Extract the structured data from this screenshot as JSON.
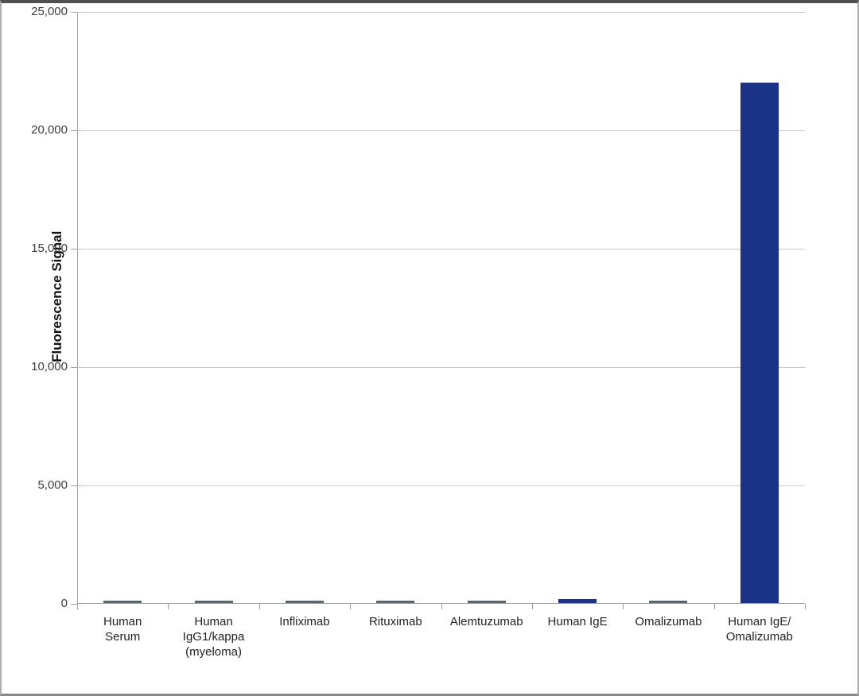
{
  "chart_data": {
    "type": "bar",
    "title": "",
    "xlabel": "",
    "ylabel": "Fluorescence Signal",
    "ylim": [
      0,
      25000
    ],
    "ytick_interval": 5000,
    "yticks": [
      25000,
      20000,
      15000,
      10000,
      5000,
      0
    ],
    "ytick_labels": [
      "25,000",
      "20,000",
      "15,000",
      "10,000",
      "5,000",
      "0"
    ],
    "grid": true,
    "legend": "none",
    "categories": [
      "Human Serum",
      "Human IgG1/kappa (myeloma)",
      "Infliximab",
      "Rituximab",
      "Alemtuzumab",
      "Human IgE",
      "Omalizumab",
      "Human IgE/Omalizumab"
    ],
    "category_label_lines": [
      "Human\nSerum",
      "Human\nIgG1/kappa\n(myeloma)",
      "Infliximab",
      "Rituximab",
      "Alemtuzumab",
      "Human IgE",
      "Omalizumab",
      "Human IgE/\nOmalizumab"
    ],
    "values": [
      150,
      150,
      150,
      150,
      150,
      200,
      150,
      22000
    ],
    "bar_colors": [
      "#5b656c",
      "#5b656c",
      "#5b656c",
      "#5b656c",
      "#5b656c",
      "#1a3386",
      "#5b656c",
      "#1a3386"
    ],
    "colors": {
      "default_bar": "#5b656c",
      "highlight_bar": "#1a3386",
      "gridline": "#c6c6c6",
      "axis": "#9f9f9f",
      "tick_text": "#3d3d3d",
      "label_text": "#222222"
    }
  }
}
